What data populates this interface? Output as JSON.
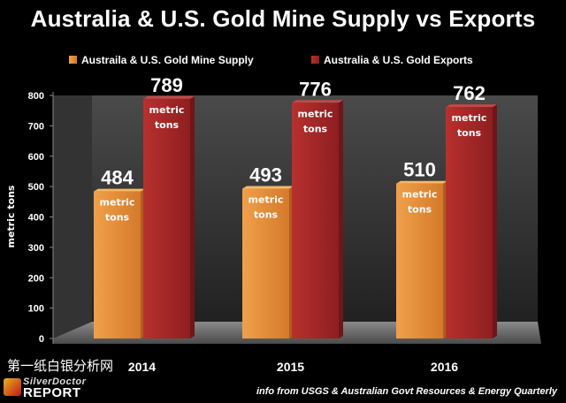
{
  "watermark": "第一纸白银分析网",
  "logo": {
    "top": "SilverDoctor",
    "bottom": "REPORT"
  },
  "source_note": "info from USGS & Australian Govt Resources & Energy Quarterly",
  "colors": {
    "supply": "#e8913c",
    "exports": "#a8282a",
    "background": "#000000"
  },
  "chart_data": {
    "type": "bar",
    "title": "Australia & U.S. Gold Mine Supply vs Exports",
    "ylabel": "metric tons",
    "xlabel": "",
    "categories": [
      "2014",
      "2015",
      "2016"
    ],
    "ylim": [
      0,
      800
    ],
    "yticks": [
      0,
      100,
      200,
      300,
      400,
      500,
      600,
      700,
      800
    ],
    "grid": false,
    "legend_position": "top",
    "series": [
      {
        "name": "Austraila & U.S. Gold Mine Supply",
        "values": [
          484,
          493,
          510
        ],
        "color": "#e8913c",
        "bar_note": "metric tons"
      },
      {
        "name": "Australia & U.S. Gold Exports",
        "values": [
          789,
          776,
          762
        ],
        "color": "#a8282a",
        "bar_note": "metric tons"
      }
    ]
  }
}
